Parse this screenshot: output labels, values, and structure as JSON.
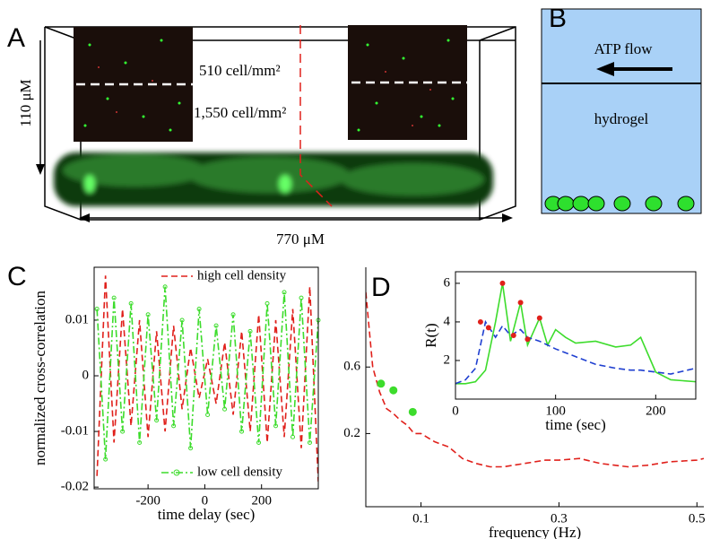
{
  "panels": {
    "a": {
      "label": "A",
      "height_label": "110 μM",
      "width_label": "770 μM",
      "top_density": "510  cell/mm²",
      "bottom_density": "1,550  cell/mm²"
    },
    "b": {
      "label": "B",
      "flow_label": "ATP flow",
      "gel_label": "hydrogel"
    }
  },
  "chart_data": [
    {
      "type": "line",
      "panel_label": "C",
      "xlabel": "time delay (sec)",
      "ylabel": "normalized cross-correlation",
      "x": [
        -380,
        -350,
        -320,
        -290,
        -260,
        -230,
        -200,
        -170,
        -140,
        -110,
        -80,
        -50,
        -20,
        10,
        40,
        70,
        100,
        130,
        160,
        190,
        220,
        250,
        280,
        310,
        340,
        370,
        400
      ],
      "series": [
        {
          "name": "high cell density",
          "color": "#e0201b",
          "style": "dashed",
          "legend": "top",
          "values": [
            -0.018,
            0.018,
            -0.012,
            0.012,
            -0.009,
            0.01,
            -0.011,
            0.008,
            -0.01,
            0.009,
            -0.006,
            0.005,
            -0.004,
            0.003,
            -0.005,
            0.006,
            -0.007,
            0.008,
            -0.01,
            0.011,
            -0.012,
            0.01,
            -0.011,
            0.012,
            -0.013,
            0.016,
            -0.019
          ]
        },
        {
          "name": "low cell density",
          "color": "#3ddc2c",
          "style": "dashdot",
          "markers": true,
          "legend": "bottom",
          "values": [
            0.012,
            -0.015,
            0.014,
            -0.01,
            0.013,
            -0.012,
            0.011,
            -0.008,
            0.016,
            -0.009,
            0.01,
            -0.013,
            0.012,
            -0.007,
            0.009,
            -0.006,
            0.011,
            -0.01,
            0.008,
            -0.012,
            0.013,
            -0.009,
            0.015,
            -0.011,
            0.014,
            -0.012,
            0.01
          ]
        }
      ],
      "xlim": [
        -390,
        400
      ],
      "xticks": [
        -200,
        0,
        200
      ],
      "ylim": [
        -0.0203,
        0.0195
      ],
      "yticks": [
        -0.02,
        -0.01,
        0,
        0.01
      ]
    },
    {
      "type": "line",
      "panel_label": "D",
      "xlabel": "frequency (Hz)",
      "x": [
        0.02,
        0.03,
        0.04,
        0.05,
        0.06,
        0.07,
        0.08,
        0.09,
        0.1,
        0.12,
        0.14,
        0.16,
        0.18,
        0.2,
        0.22,
        0.25,
        0.28,
        0.3,
        0.33,
        0.36,
        0.4,
        0.43,
        0.46,
        0.5,
        0.51
      ],
      "series": [
        {
          "color": "#e0201b",
          "style": "dashed",
          "values": [
            1.05,
            0.6,
            0.45,
            0.35,
            0.32,
            0.28,
            0.25,
            0.2,
            0.2,
            0.15,
            0.12,
            0.05,
            0.02,
            0.0,
            0.0,
            0.02,
            0.04,
            0.04,
            0.05,
            0.02,
            0.0,
            0.01,
            0.03,
            0.04,
            0.05
          ]
        },
        {
          "color": "#3ddc2c",
          "style": "markers",
          "x": [
            0.042,
            0.06,
            0.088
          ],
          "values": [
            0.5,
            0.46,
            0.33
          ]
        }
      ],
      "xlim": [
        0.02,
        0.51
      ],
      "xticks": [
        0.1,
        0.3,
        0.5
      ],
      "ylim": [
        -0.24,
        1.2
      ],
      "yticks": [
        0.2,
        0.6
      ]
    },
    {
      "type": "line",
      "xlabel": "time (sec)",
      "ylabel": "R(t)",
      "x": [
        0,
        10,
        20,
        30,
        40,
        47,
        55,
        65,
        72,
        84,
        92,
        100,
        110,
        120,
        140,
        160,
        175,
        185,
        200,
        215,
        240
      ],
      "series": [
        {
          "color": "#3ddc2c",
          "style": "solid",
          "values": [
            0.8,
            0.8,
            0.9,
            1.5,
            4.0,
            6.0,
            3.0,
            5.0,
            2.8,
            4.2,
            2.8,
            3.6,
            3.2,
            2.9,
            3.0,
            2.7,
            2.8,
            3.2,
            1.4,
            1.0,
            0.9
          ]
        },
        {
          "color": "#1f3fd0",
          "style": "dashed",
          "values": [
            0.8,
            1.0,
            1.6,
            4.0,
            3.2,
            3.8,
            3.3,
            3.6,
            3.2,
            3.0,
            2.8,
            2.6,
            2.4,
            2.2,
            1.8,
            1.6,
            1.5,
            1.5,
            1.4,
            1.3,
            1.6
          ]
        },
        {
          "color": "#e0201b",
          "style": "markers",
          "x": [
            25,
            33,
            47,
            58,
            65,
            72,
            84
          ],
          "values": [
            4.0,
            3.7,
            6.0,
            3.3,
            5.0,
            3.1,
            4.2
          ]
        }
      ],
      "xlim": [
        0,
        240
      ],
      "xticks": [
        0,
        100,
        200
      ],
      "ylim": [
        0,
        6.6
      ],
      "yticks": [
        2,
        4,
        6
      ]
    }
  ]
}
